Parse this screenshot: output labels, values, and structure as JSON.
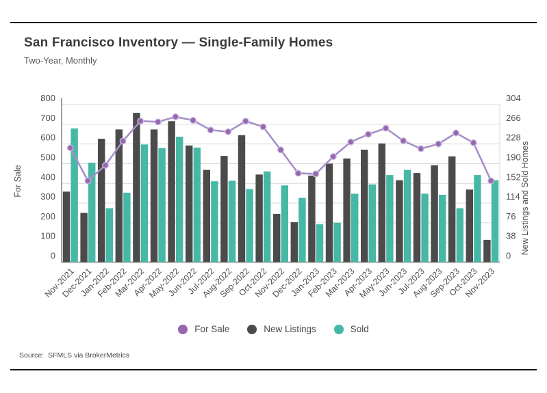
{
  "page": {
    "title": "San Francisco Inventory — Single-Family Homes",
    "subtitle": "Two-Year, Monthly",
    "source": "Source:  SFMLS via BrokerMetrics"
  },
  "colors": {
    "for_sale": "#9568ae",
    "for_sale_line": "#a78fc9",
    "for_sale_ring": "#c9b6e0",
    "new_listings": "#4b4b4b",
    "sold": "#46b8a5",
    "gridline": "#d9d9d9",
    "axis": "#7a7a7a"
  },
  "chart_data": {
    "type": "bar",
    "subtype": "grouped bars with overlaid line, dual y-axes",
    "title": "San Francisco Inventory — Single-Family Homes",
    "subtitle": "Two-Year, Monthly",
    "grid": true,
    "legend_position": "bottom",
    "categories": [
      "Nov-2021",
      "Dec-2021",
      "Jan-2022",
      "Feb-2022",
      "Mar-2022",
      "Apr-2022",
      "May-2022",
      "Jun-2022",
      "Jul-2022",
      "Aug-2022",
      "Sep-2022",
      "Oct-2022",
      "Nov-2022",
      "Dec-2022",
      "Jan-2023",
      "Feb-2023",
      "Mar-2023",
      "Apr-2023",
      "May-2023",
      "Jun-2023",
      "Jul-2023",
      "Aug-2023",
      "Sep-2023",
      "Oct-2023",
      "Nov-2023"
    ],
    "series": [
      {
        "name": "For Sale",
        "type": "line",
        "axis": "left",
        "values": [
          580,
          413,
          492,
          615,
          716,
          712,
          738,
          720,
          671,
          662,
          716,
          687,
          570,
          451,
          448,
          536,
          610,
          649,
          680,
          616,
          576,
          600,
          656,
          606,
          413
        ]
      },
      {
        "name": "New Listings",
        "type": "bar",
        "axis": "right",
        "values": [
          136,
          95,
          238,
          256,
          288,
          256,
          272,
          225,
          178,
          205,
          245,
          169,
          93,
          77,
          167,
          190,
          200,
          217,
          229,
          158,
          172,
          187,
          204,
          140,
          43
        ]
      },
      {
        "name": "Sold",
        "type": "bar",
        "axis": "right",
        "values": [
          258,
          192,
          104,
          134,
          227,
          220,
          242,
          221,
          156,
          157,
          141,
          175,
          148,
          124,
          73,
          76,
          132,
          150,
          168,
          178,
          132,
          130,
          104,
          168,
          158
        ]
      }
    ],
    "left_axis": {
      "label": "For Sale",
      "min": 0,
      "max": 800,
      "step": 100,
      "ticks": [
        0,
        100,
        200,
        300,
        400,
        500,
        600,
        700,
        800
      ]
    },
    "right_axis": {
      "label": "New Listings and Sold Homes",
      "min": 0,
      "max": 304,
      "step": 38,
      "ticks": [
        0,
        38,
        76,
        114,
        152,
        190,
        228,
        266,
        304
      ]
    }
  }
}
